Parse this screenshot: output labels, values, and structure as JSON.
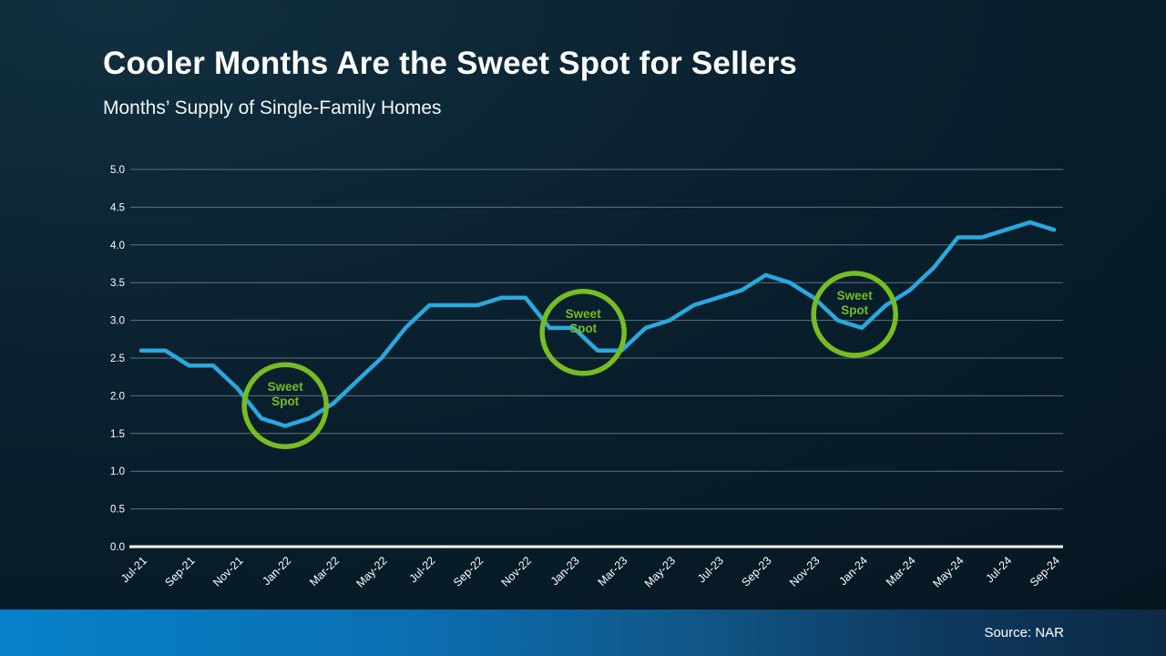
{
  "slide": {
    "title": "Cooler Months Are the Sweet Spot for Sellers",
    "subtitle": "Months’ Supply of Single-Family Homes",
    "source": "Source: NAR"
  },
  "colors": {
    "background": "#0a202e",
    "line": "#29a9e0",
    "accent_green": "#76bd22",
    "grid": "#7f8d96",
    "axis": "#ffffff",
    "text": "#ffffff",
    "footer_left_blue": "#0681c9",
    "footer_right_dark": "#0c2a45"
  },
  "chart_data": {
    "type": "line",
    "title": "Cooler Months Are the Sweet Spot for Sellers",
    "subtitle": "Months’ Supply of Single-Family Homes",
    "xlabel": "",
    "ylabel": "",
    "ylim": [
      0,
      5
    ],
    "ytick_step": 0.5,
    "grid": true,
    "legend": false,
    "x": [
      "Jul-21",
      "Aug-21",
      "Sep-21",
      "Oct-21",
      "Nov-21",
      "Dec-21",
      "Jan-22",
      "Feb-22",
      "Mar-22",
      "Apr-22",
      "May-22",
      "Jun-22",
      "Jul-22",
      "Aug-22",
      "Sep-22",
      "Oct-22",
      "Nov-22",
      "Dec-22",
      "Jan-23",
      "Feb-23",
      "Mar-23",
      "Apr-23",
      "May-23",
      "Jun-23",
      "Jul-23",
      "Aug-23",
      "Sep-23",
      "Oct-23",
      "Nov-23",
      "Dec-23",
      "Jan-24",
      "Feb-24",
      "Mar-24",
      "Apr-24",
      "May-24",
      "Jun-24",
      "Jul-24",
      "Aug-24",
      "Sep-24"
    ],
    "values": [
      2.6,
      2.6,
      2.4,
      2.4,
      2.1,
      1.7,
      1.6,
      1.7,
      1.9,
      2.2,
      2.5,
      2.9,
      3.2,
      3.2,
      3.2,
      3.3,
      3.3,
      2.9,
      2.9,
      2.6,
      2.6,
      2.9,
      3.0,
      3.2,
      3.3,
      3.4,
      3.6,
      3.5,
      3.3,
      3.0,
      2.9,
      3.2,
      3.4,
      3.7,
      4.1,
      4.1,
      4.2,
      4.3,
      4.2
    ],
    "x_ticks_shown": [
      "Jul-21",
      "Sep-21",
      "Nov-21",
      "Jan-22",
      "Mar-22",
      "May-22",
      "Jul-22",
      "Sep-22",
      "Nov-22",
      "Jan-23",
      "Mar-23",
      "May-23",
      "Jul-23",
      "Sep-23",
      "Nov-23",
      "Jan-24",
      "Mar-24",
      "May-24",
      "Jul-24",
      "Sep-24"
    ],
    "annotations": [
      {
        "label": "Sweet Spot",
        "near_month": "Jan-22",
        "month_index": 6.0,
        "value": 1.87
      },
      {
        "label": "Sweet Spot",
        "near_month": "Jan-23",
        "month_index": 18.4,
        "value": 2.84
      },
      {
        "label": "Sweet Spot",
        "near_month": "Jan-24",
        "month_index": 29.7,
        "value": 3.08
      }
    ]
  }
}
